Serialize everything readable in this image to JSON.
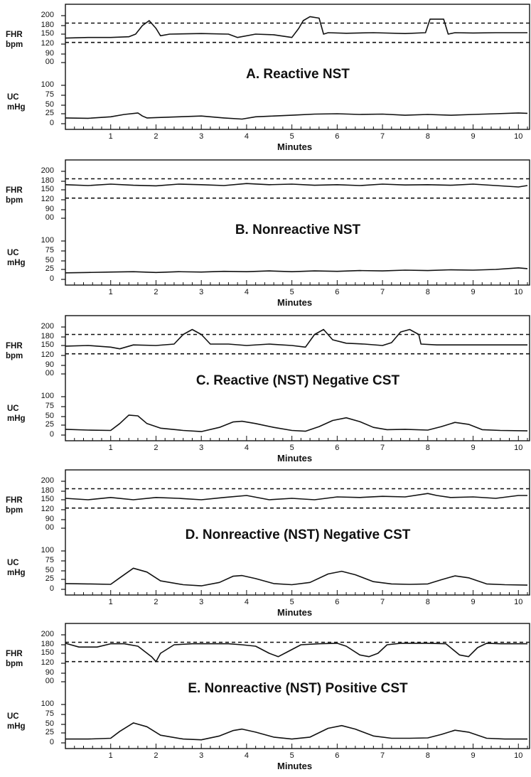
{
  "chart_data": [
    {
      "type": "line",
      "title": "A. Reactive NST",
      "xlabel": "Minutes",
      "x_ticks": [
        "1",
        "2",
        "3",
        "4",
        "5",
        "6",
        "7",
        "8",
        "9",
        "10"
      ],
      "fhr_label": [
        "FHR",
        "bpm"
      ],
      "uc_label": [
        "UC",
        "mHg"
      ],
      "fhr_ticks": [
        "200",
        "180",
        "150",
        "120",
        "90",
        "00"
      ],
      "uc_ticks": [
        "100",
        "75",
        "50",
        "25",
        "0"
      ],
      "fhr_dashed": [
        185,
        125
      ],
      "xlim": [
        0,
        10.2
      ],
      "series": [
        {
          "key": "fhr",
          "x": [
            0,
            0.5,
            1,
            1.4,
            1.55,
            1.7,
            1.85,
            2.0,
            2.1,
            2.3,
            3,
            3.6,
            3.8,
            4.2,
            4.6,
            5.0,
            5.15,
            5.25,
            5.4,
            5.6,
            5.7,
            5.8,
            6.2,
            6.8,
            7.5,
            7.95,
            8.05,
            8.35,
            8.45,
            8.6,
            9,
            9.5,
            10.2
          ],
          "y": [
            138,
            140,
            140,
            142,
            150,
            180,
            190,
            170,
            145,
            150,
            152,
            150,
            140,
            150,
            148,
            140,
            170,
            190,
            198,
            195,
            150,
            155,
            153,
            155,
            152,
            155,
            193,
            193,
            150,
            155,
            154,
            155,
            155
          ]
        },
        {
          "key": "uc",
          "x": [
            0,
            0.5,
            1,
            1.3,
            1.6,
            1.7,
            1.8,
            2,
            2.5,
            3,
            3.5,
            3.9,
            4.2,
            4.6,
            5,
            5.5,
            6,
            6.5,
            7,
            7.5,
            8,
            8.5,
            9,
            9.5,
            10,
            10.2
          ],
          "y": [
            15,
            14,
            18,
            24,
            28,
            20,
            15,
            16,
            18,
            20,
            15,
            12,
            18,
            20,
            22,
            25,
            26,
            24,
            25,
            22,
            24,
            22,
            24,
            26,
            28,
            27
          ]
        }
      ]
    },
    {
      "type": "line",
      "title": "B. Nonreactive NST",
      "xlabel": "Minutes",
      "x_ticks": [
        "1",
        "2",
        "3",
        "4",
        "5",
        "6",
        "7",
        "8",
        "9",
        "10"
      ],
      "fhr_label": [
        "FHR",
        "bpm"
      ],
      "uc_label": [
        "UC",
        "mHg"
      ],
      "fhr_ticks": [
        "200",
        "180",
        "150",
        "120",
        "90",
        "00"
      ],
      "uc_ticks": [
        "100",
        "75",
        "50",
        "25",
        "0"
      ],
      "fhr_dashed": [
        185,
        125
      ],
      "xlim": [
        0,
        10.2
      ],
      "series": [
        {
          "key": "fhr",
          "x": [
            0,
            0.5,
            1,
            1.5,
            2,
            2.5,
            3,
            3.5,
            4,
            4.5,
            5,
            5.5,
            6,
            6.5,
            7,
            7.5,
            8,
            8.5,
            9,
            9.5,
            10,
            10.2
          ],
          "y": [
            168,
            165,
            170,
            166,
            164,
            170,
            168,
            165,
            172,
            168,
            170,
            166,
            168,
            165,
            170,
            167,
            168,
            166,
            170,
            165,
            160,
            165
          ]
        },
        {
          "key": "uc",
          "x": [
            0,
            0.5,
            1,
            1.5,
            2,
            2.5,
            3,
            3.5,
            4,
            4.5,
            5,
            5.5,
            6,
            6.5,
            7,
            7.5,
            8,
            8.5,
            9,
            9.5,
            10,
            10.2
          ],
          "y": [
            17,
            18,
            19,
            20,
            18,
            20,
            19,
            21,
            20,
            22,
            20,
            22,
            21,
            23,
            22,
            24,
            23,
            25,
            24,
            26,
            30,
            28
          ]
        }
      ]
    },
    {
      "type": "line",
      "title": "C. Reactive (NST) Negative CST",
      "xlabel": "Minutes",
      "x_ticks": [
        "1",
        "2",
        "3",
        "4",
        "5",
        "6",
        "7",
        "8",
        "9",
        "10"
      ],
      "fhr_label": [
        "FHR",
        "bpm"
      ],
      "uc_label": [
        "UC",
        "mHg"
      ],
      "fhr_ticks": [
        "200",
        "180",
        "150",
        "120",
        "90",
        "00"
      ],
      "uc_ticks": [
        "100",
        "75",
        "50",
        "25",
        "0"
      ],
      "fhr_dashed": [
        185,
        125
      ],
      "xlim": [
        0,
        10.2
      ],
      "series": [
        {
          "key": "fhr",
          "x": [
            0,
            0.5,
            1,
            1.2,
            1.5,
            2,
            2.4,
            2.6,
            2.8,
            3,
            3.2,
            3.6,
            4,
            4.5,
            5,
            5.3,
            5.5,
            5.7,
            5.9,
            6.2,
            6.6,
            7,
            7.2,
            7.4,
            7.6,
            7.8,
            7.85,
            8.2,
            8.7,
            9.3,
            10.2
          ],
          "y": [
            148,
            150,
            145,
            140,
            152,
            150,
            155,
            185,
            195,
            185,
            155,
            155,
            150,
            155,
            150,
            145,
            185,
            195,
            170,
            158,
            155,
            150,
            160,
            190,
            195,
            185,
            155,
            152,
            152,
            152,
            152
          ]
        },
        {
          "key": "uc",
          "x": [
            0,
            0.5,
            1,
            1.2,
            1.4,
            1.6,
            1.8,
            2.1,
            2.6,
            3,
            3.4,
            3.7,
            3.9,
            4.2,
            4.6,
            5,
            5.3,
            5.6,
            5.9,
            6.2,
            6.5,
            6.8,
            7.1,
            7.5,
            8,
            8.3,
            8.6,
            8.9,
            9.2,
            9.6,
            10.2
          ],
          "y": [
            15,
            13,
            12,
            30,
            52,
            50,
            30,
            18,
            12,
            9,
            20,
            34,
            36,
            30,
            20,
            12,
            10,
            22,
            38,
            45,
            35,
            20,
            14,
            15,
            13,
            22,
            33,
            28,
            14,
            12,
            11
          ]
        }
      ]
    },
    {
      "type": "line",
      "title": "D. Nonreactive (NST) Negative CST",
      "xlabel": "Minutes",
      "x_ticks": [
        "1",
        "2",
        "3",
        "4",
        "5",
        "6",
        "7",
        "8",
        "9",
        "10"
      ],
      "fhr_label": [
        "FHR",
        "bpm"
      ],
      "uc_label": [
        "UC",
        "mHg"
      ],
      "fhr_ticks": [
        "200",
        "180",
        "150",
        "120",
        "90",
        "00"
      ],
      "uc_ticks": [
        "100",
        "75",
        "50",
        "25",
        "0"
      ],
      "fhr_dashed": [
        185,
        125
      ],
      "xlim": [
        0,
        10.2
      ],
      "series": [
        {
          "key": "fhr",
          "x": [
            0,
            0.5,
            1,
            1.5,
            2,
            2.5,
            3,
            3.5,
            4,
            4.5,
            5,
            5.5,
            6,
            6.5,
            7,
            7.5,
            8,
            8.2,
            8.5,
            9,
            9.5,
            10,
            10.2
          ],
          "y": [
            155,
            150,
            158,
            150,
            158,
            155,
            150,
            158,
            165,
            150,
            155,
            150,
            160,
            158,
            162,
            160,
            172,
            165,
            158,
            160,
            155,
            165,
            165
          ]
        },
        {
          "key": "uc",
          "x": [
            0,
            0.5,
            1,
            1.2,
            1.5,
            1.8,
            2.1,
            2.6,
            3,
            3.4,
            3.7,
            3.9,
            4.2,
            4.6,
            5,
            5.4,
            5.8,
            6.1,
            6.4,
            6.8,
            7.2,
            7.6,
            8,
            8.3,
            8.6,
            8.9,
            9.3,
            9.7,
            10.2
          ],
          "y": [
            15,
            14,
            13,
            30,
            55,
            45,
            22,
            12,
            9,
            18,
            34,
            36,
            28,
            15,
            12,
            18,
            40,
            47,
            38,
            20,
            14,
            13,
            14,
            25,
            35,
            30,
            14,
            12,
            11
          ]
        }
      ]
    },
    {
      "type": "line",
      "title": "E. Nonreactive (NST) Positive CST",
      "xlabel": "Minutes",
      "x_ticks": [
        "1",
        "2",
        "3",
        "4",
        "5",
        "6",
        "7",
        "8",
        "9",
        "10"
      ],
      "fhr_label": [
        "FHR",
        "bpm"
      ],
      "uc_label": [
        "UC",
        "mHg"
      ],
      "fhr_ticks": [
        "200",
        "180",
        "150",
        "120",
        "90",
        "00"
      ],
      "uc_ticks": [
        "100",
        "75",
        "50",
        "25",
        "0"
      ],
      "fhr_dashed": [
        185,
        125
      ],
      "xlim": [
        0,
        10.2
      ],
      "series": [
        {
          "key": "fhr",
          "x": [
            0,
            0.3,
            0.7,
            1,
            1.3,
            1.6,
            1.9,
            2.0,
            2.1,
            2.4,
            2.8,
            3.2,
            3.6,
            3.9,
            4.2,
            4.5,
            4.7,
            4.9,
            5.2,
            5.6,
            6,
            6.2,
            6.5,
            6.7,
            6.9,
            7.1,
            7.4,
            8,
            8.4,
            8.7,
            8.9,
            9.1,
            9.3,
            9.6,
            10.2
          ],
          "y": [
            183,
            172,
            172,
            182,
            182,
            175,
            140,
            125,
            150,
            180,
            182,
            182,
            182,
            180,
            175,
            150,
            140,
            155,
            180,
            182,
            183,
            175,
            145,
            140,
            150,
            180,
            183,
            183,
            182,
            145,
            140,
            170,
            183,
            182,
            182
          ]
        },
        {
          "key": "uc",
          "x": [
            0,
            0.5,
            1,
            1.2,
            1.5,
            1.8,
            2.1,
            2.6,
            3,
            3.4,
            3.7,
            3.9,
            4.2,
            4.6,
            5,
            5.4,
            5.8,
            6.1,
            6.4,
            6.8,
            7.2,
            7.6,
            8,
            8.3,
            8.6,
            8.9,
            9.3,
            9.7,
            10.2
          ],
          "y": [
            10,
            10,
            12,
            30,
            52,
            42,
            20,
            10,
            8,
            18,
            32,
            36,
            28,
            15,
            10,
            15,
            38,
            45,
            36,
            18,
            12,
            12,
            13,
            22,
            33,
            28,
            12,
            10,
            10
          ]
        }
      ]
    }
  ]
}
